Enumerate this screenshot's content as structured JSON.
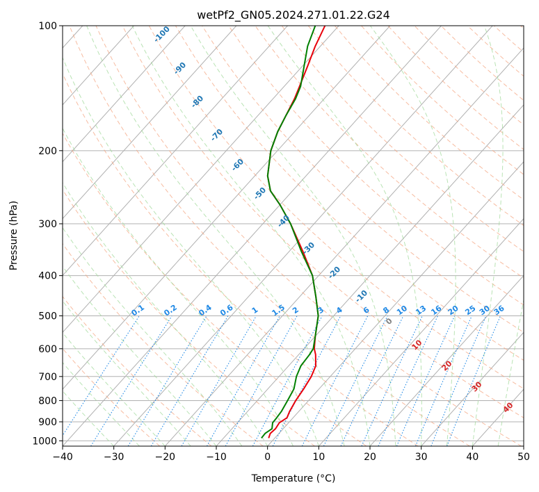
{
  "chart_data": {
    "type": "line",
    "subtype": "skew-t log-p",
    "title": "wetPf2_GN05.2024.271.01.22.G24",
    "xlabel": "Temperature (°C)",
    "ylabel": "Pressure (hPa)",
    "xlim": [
      -40,
      50
    ],
    "ylim": [
      1030,
      100
    ],
    "yscale": "log",
    "x_ticks": [
      -40,
      -30,
      -20,
      -10,
      0,
      10,
      20,
      30,
      40,
      50
    ],
    "y_ticks": [
      100,
      200,
      300,
      400,
      500,
      600,
      700,
      800,
      900,
      1000
    ],
    "grid": true,
    "series": [
      {
        "color": "#e8000b",
        "points": [
          {
            "p": 985,
            "t": -1.2
          },
          {
            "p": 960,
            "t": -1.7
          },
          {
            "p": 935,
            "t": -1.5
          },
          {
            "p": 905,
            "t": -1.8
          },
          {
            "p": 880,
            "t": -1.2
          },
          {
            "p": 850,
            "t": -1.8
          },
          {
            "p": 800,
            "t": -2.5
          },
          {
            "p": 750,
            "t": -3.0
          },
          {
            "p": 700,
            "t": -3.7
          },
          {
            "p": 660,
            "t": -4.7
          },
          {
            "p": 620,
            "t": -6.7
          },
          {
            "p": 600,
            "t": -8.0
          },
          {
            "p": 560,
            "t": -10.0
          },
          {
            "p": 500,
            "t": -13.0
          },
          {
            "p": 450,
            "t": -16.8
          },
          {
            "p": 400,
            "t": -21.2
          },
          {
            "p": 350,
            "t": -27.3
          },
          {
            "p": 300,
            "t": -34.6
          },
          {
            "p": 270,
            "t": -40.0
          },
          {
            "p": 250,
            "t": -44.3
          },
          {
            "p": 230,
            "t": -47.5
          },
          {
            "p": 200,
            "t": -51.3
          },
          {
            "p": 180,
            "t": -53.3
          },
          {
            "p": 165,
            "t": -54.5
          },
          {
            "p": 150,
            "t": -55.8
          },
          {
            "p": 140,
            "t": -57.0
          },
          {
            "p": 125,
            "t": -59.0
          },
          {
            "p": 112,
            "t": -61.0
          },
          {
            "p": 100,
            "t": -62.7
          }
        ]
      },
      {
        "color": "#008000",
        "points": [
          {
            "p": 985,
            "t": -2.6
          },
          {
            "p": 960,
            "t": -2.7
          },
          {
            "p": 935,
            "t": -2.2
          },
          {
            "p": 905,
            "t": -3.1
          },
          {
            "p": 880,
            "t": -3.2
          },
          {
            "p": 850,
            "t": -3.4
          },
          {
            "p": 800,
            "t": -4.1
          },
          {
            "p": 750,
            "t": -4.9
          },
          {
            "p": 700,
            "t": -6.6
          },
          {
            "p": 660,
            "t": -7.6
          },
          {
            "p": 620,
            "t": -7.9
          },
          {
            "p": 600,
            "t": -8.2
          },
          {
            "p": 560,
            "t": -10.0
          },
          {
            "p": 500,
            "t": -13.0
          },
          {
            "p": 450,
            "t": -16.8
          },
          {
            "p": 400,
            "t": -21.2
          },
          {
            "p": 350,
            "t": -27.6
          },
          {
            "p": 300,
            "t": -34.6
          },
          {
            "p": 270,
            "t": -40.0
          },
          {
            "p": 250,
            "t": -44.3
          },
          {
            "p": 230,
            "t": -47.5
          },
          {
            "p": 200,
            "t": -51.3
          },
          {
            "p": 180,
            "t": -53.3
          },
          {
            "p": 165,
            "t": -54.5
          },
          {
            "p": 150,
            "t": -55.6
          },
          {
            "p": 140,
            "t": -56.8
          },
          {
            "p": 125,
            "t": -59.7
          },
          {
            "p": 112,
            "t": -62.5
          },
          {
            "p": 100,
            "t": -64.6
          }
        ]
      }
    ],
    "dry_adiabat_labels": [
      "-100",
      "-90",
      "-80",
      "-70",
      "-60",
      "-50",
      "-40",
      "-30",
      "-20",
      "-10"
    ],
    "dry_adiabats": [
      -100,
      -90,
      -80,
      -70,
      -60,
      -50,
      -40,
      -30,
      -20,
      -10
    ],
    "moist_adiabat_labels": [
      "0",
      "10",
      "20",
      "30",
      "40"
    ],
    "moist_adiabats": [
      0,
      10,
      20,
      30,
      40
    ],
    "mixing_ratio_labels": [
      "0.1",
      "0.2",
      "0.4",
      "0.6",
      "1",
      "1.5",
      "2",
      "3",
      "4",
      "6",
      "8",
      "10",
      "13",
      "16",
      "20",
      "25",
      "30",
      "36"
    ],
    "mixing_ratios": [
      0.1,
      0.2,
      0.4,
      0.6,
      1,
      1.5,
      2,
      3,
      4,
      6,
      8,
      10,
      13,
      16,
      20,
      25,
      30,
      36
    ]
  }
}
